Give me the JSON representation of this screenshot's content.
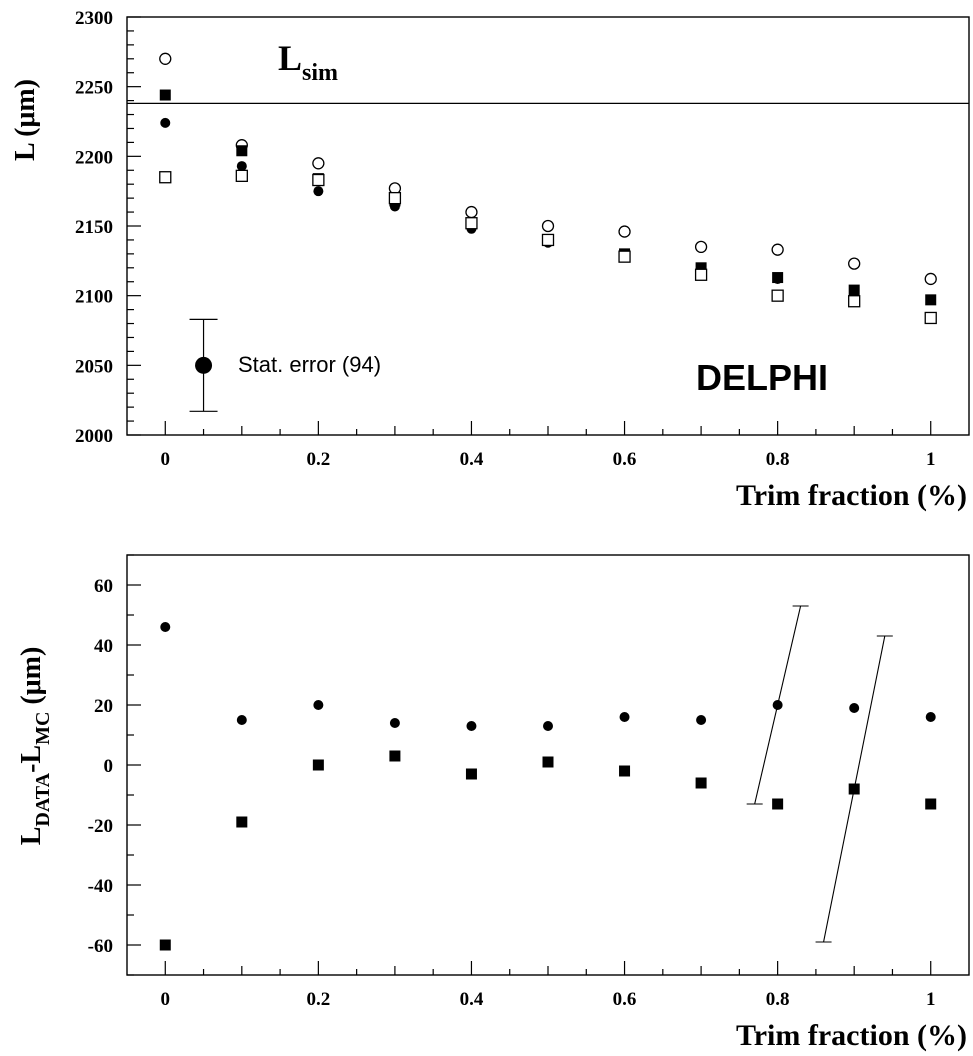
{
  "chart_data": [
    {
      "type": "scatter",
      "ylim": [
        2000,
        2300
      ],
      "xlim": [
        -0.05,
        1.05
      ],
      "x": [
        0,
        0.1,
        0.2,
        0.3,
        0.4,
        0.5,
        0.6,
        0.7,
        0.8,
        0.9,
        1.0
      ],
      "x_tick_labels": [
        "0",
        "0.2",
        "0.4",
        "0.6",
        "0.8",
        "1"
      ],
      "x_ticks": [
        0,
        0.2,
        0.4,
        0.6,
        0.8,
        1
      ],
      "y_tick_labels": [
        "2000",
        "2050",
        "2100",
        "2150",
        "2200",
        "2250",
        "2300"
      ],
      "y_ticks": [
        2000,
        2050,
        2100,
        2150,
        2200,
        2250,
        2300
      ],
      "xlabel": "Trim fraction (%)",
      "ylabel_main": "L",
      "ylabel_unit": "(μm)",
      "reference_line": {
        "value": 2238,
        "label_main": "L",
        "label_sub": "sim"
      },
      "series": [
        {
          "marker": "open-circle",
          "values": [
            2270,
            2208,
            2195,
            2177,
            2160,
            2150,
            2146,
            2135,
            2133,
            2123,
            2112
          ]
        },
        {
          "marker": "filled-square",
          "values": [
            2244,
            2204,
            2184,
            2168,
            2152,
            2140,
            2130,
            2120,
            2113,
            2104,
            2097
          ]
        },
        {
          "marker": "filled-circle",
          "values": [
            2224,
            2193,
            2175,
            2164,
            2148,
            2138,
            2130,
            2120,
            2112,
            2103,
            2097
          ]
        },
        {
          "marker": "open-square",
          "values": [
            2185,
            2186,
            2183,
            2170,
            2152,
            2140,
            2128,
            2115,
            2100,
            2096,
            2084
          ]
        }
      ],
      "stat_error": {
        "label": "Stat. error (94)",
        "x": 0.05,
        "y": 2050,
        "low": 2017,
        "high": 2083
      },
      "watermark": "DELPHI"
    },
    {
      "type": "scatter",
      "ylim": [
        -70,
        70
      ],
      "xlim": [
        -0.05,
        1.05
      ],
      "x": [
        0,
        0.1,
        0.2,
        0.3,
        0.4,
        0.5,
        0.6,
        0.7,
        0.8,
        0.9,
        1.0
      ],
      "x_tick_labels": [
        "0",
        "0.2",
        "0.4",
        "0.6",
        "0.8",
        "1"
      ],
      "x_ticks": [
        0,
        0.2,
        0.4,
        0.6,
        0.8,
        1
      ],
      "y_tick_labels": [
        "-60",
        "-40",
        "-20",
        "0",
        "20",
        "40",
        "60"
      ],
      "y_ticks": [
        -60,
        -40,
        -20,
        0,
        20,
        40,
        60
      ],
      "xlabel": "Trim fraction (%)",
      "ylabel_parts": {
        "L1": "L",
        "sub1": "DATA",
        "dash": "-L",
        "sub2": "MC",
        "unit": " (μm)"
      },
      "series": [
        {
          "marker": "filled-circle",
          "values": [
            46,
            15,
            20,
            14,
            13,
            13,
            16,
            15,
            20,
            19,
            16
          ]
        },
        {
          "marker": "filled-square",
          "values": [
            -60,
            -19,
            0,
            3,
            -3,
            1,
            -2,
            -6,
            -13,
            -8,
            -13
          ]
        }
      ],
      "error_bars": [
        {
          "x_low": 0.77,
          "y_low": -13,
          "x_high": 0.83,
          "y_high": 53
        },
        {
          "x_low": 0.86,
          "y_low": -59,
          "x_high": 0.94,
          "y_high": 43
        }
      ]
    }
  ]
}
